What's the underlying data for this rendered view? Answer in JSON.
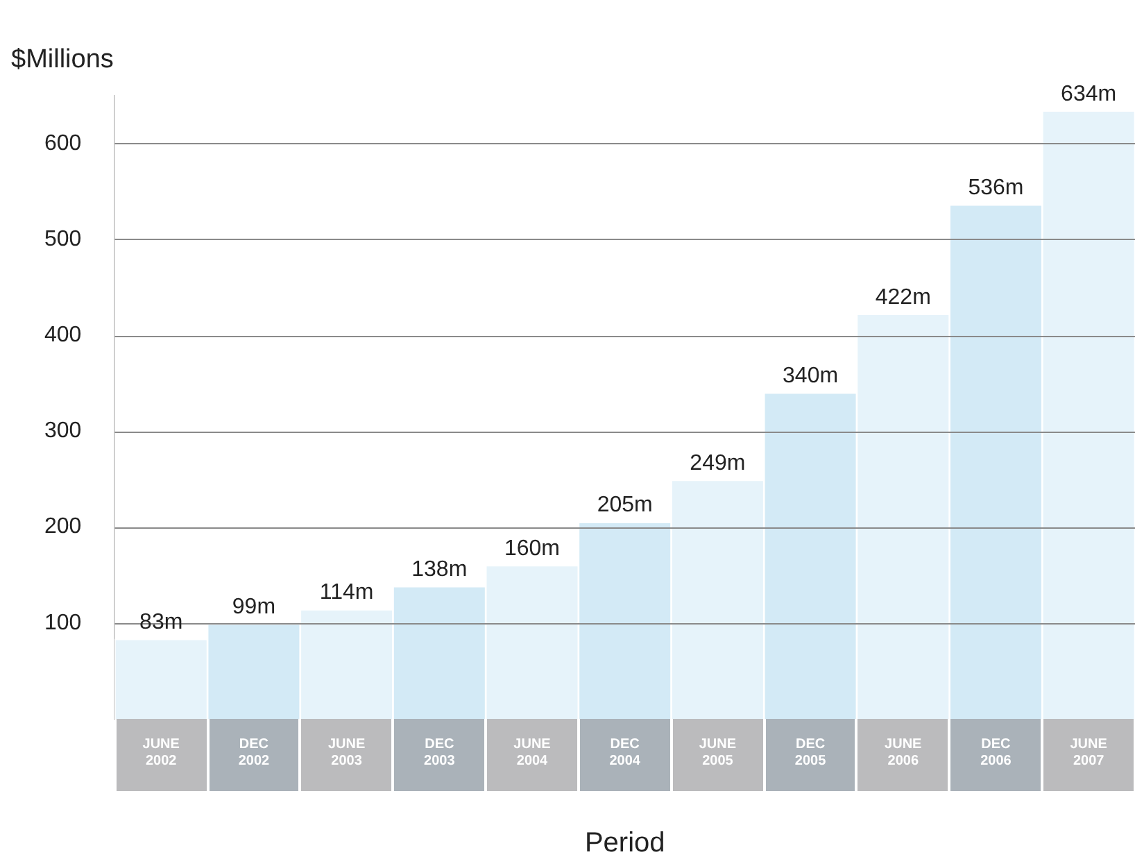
{
  "chart_data": {
    "type": "bar",
    "ylabel": "$Millions",
    "xlabel": "Period",
    "categories": [
      "JUNE 2002",
      "DEC 2002",
      "JUNE 2003",
      "DEC 2003",
      "JUNE 2004",
      "DEC 2004",
      "JUNE 2005",
      "DEC 2005",
      "JUNE 2006",
      "DEC 2006",
      "JUNE 2007"
    ],
    "values": [
      83,
      99,
      114,
      138,
      160,
      205,
      249,
      340,
      422,
      536,
      634
    ],
    "value_labels": [
      "83m",
      "99m",
      "114m",
      "138m",
      "160m",
      "205m",
      "249m",
      "340m",
      "422m",
      "536m",
      "634m"
    ],
    "colors": [
      "#e6f3fa",
      "#d3eaf6",
      "#e6f3fa",
      "#d3eaf6",
      "#e6f3fa",
      "#d3eaf6",
      "#e6f3fa",
      "#d3eaf6",
      "#e6f3fa",
      "#d3eaf6",
      "#e6f3fa"
    ],
    "ylim": [
      0,
      650
    ],
    "yticks": [
      100,
      200,
      300,
      400,
      500,
      600
    ],
    "grid": "y",
    "legend": false
  }
}
